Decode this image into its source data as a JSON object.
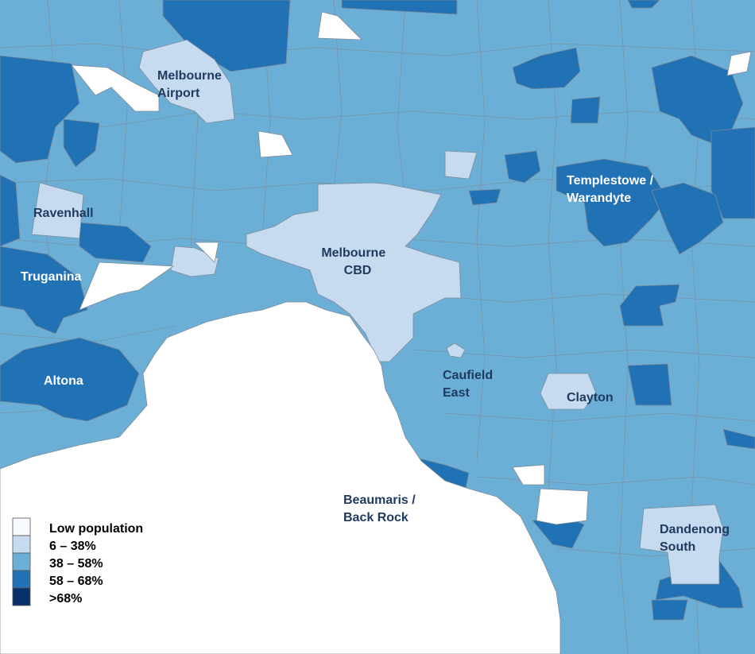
{
  "legend": {
    "items": [
      {
        "label": "Low population",
        "color": "#f7fbff"
      },
      {
        "label": "6 – 38%",
        "color": "#c6dbef"
      },
      {
        "label": "38 – 58%",
        "color": "#6baed6"
      },
      {
        "label": "58 – 68%",
        "color": "#2171b5"
      },
      {
        "label": ">68%",
        "color": "#08306b"
      }
    ]
  },
  "places": {
    "melbourne_airport": {
      "line1": "Melbourne",
      "line2": "Airport"
    },
    "ravenhall": {
      "line1": "Ravenhall"
    },
    "truganina": {
      "line1": "Truganina"
    },
    "altona": {
      "line1": "Altona"
    },
    "melbourne_cbd": {
      "line1": "Melbourne",
      "line2": "CBD"
    },
    "templestowe": {
      "line1": "Templestowe /",
      "line2": "Warandyte"
    },
    "caufield_east": {
      "line1": "Caufield",
      "line2": "East"
    },
    "clayton": {
      "line1": "Clayton"
    },
    "beaumaris": {
      "line1": "Beaumaris /",
      "line2": "Back Rock"
    },
    "dandenong_south": {
      "line1": "Dandenong",
      "line2": "South"
    }
  },
  "colors": {
    "water": "#ffffff",
    "label_dark": "#1f3a5f",
    "label_light": "#ffffff"
  }
}
